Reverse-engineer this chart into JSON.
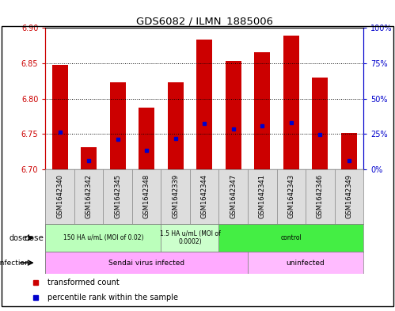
{
  "title": "GDS6082 / ILMN_1885006",
  "samples": [
    "GSM1642340",
    "GSM1642342",
    "GSM1642345",
    "GSM1642348",
    "GSM1642339",
    "GSM1642344",
    "GSM1642347",
    "GSM1642341",
    "GSM1642343",
    "GSM1642346",
    "GSM1642349"
  ],
  "bar_heights": [
    6.848,
    6.732,
    6.823,
    6.788,
    6.823,
    6.884,
    6.853,
    6.866,
    6.889,
    6.83,
    6.752
  ],
  "blue_positions": [
    6.753,
    6.713,
    6.743,
    6.727,
    6.744,
    6.765,
    6.757,
    6.762,
    6.766,
    6.749,
    6.713
  ],
  "bar_color": "#cc0000",
  "blue_color": "#0000cc",
  "bar_bottom": 6.7,
  "ylim_left": [
    6.7,
    6.9
  ],
  "ylim_right": [
    0,
    100
  ],
  "yticks_left": [
    6.7,
    6.75,
    6.8,
    6.85,
    6.9
  ],
  "yticks_right": [
    0,
    25,
    50,
    75,
    100
  ],
  "ytick_labels_right": [
    "0%",
    "25%",
    "50%",
    "75%",
    "100%"
  ],
  "dose_groups": [
    {
      "label": "150 HA u/mL (MOI of 0.02)",
      "span": [
        0,
        4
      ],
      "color": "#bbffbb"
    },
    {
      "label": "1.5 HA u/mL (MOI of\n0.0002)",
      "span": [
        4,
        6
      ],
      "color": "#ccffcc"
    },
    {
      "label": "control",
      "span": [
        6,
        11
      ],
      "color": "#44ee44"
    }
  ],
  "infection_groups": [
    {
      "label": "Sendai virus infected",
      "span": [
        0,
        7
      ],
      "color": "#ffaaff"
    },
    {
      "label": "uninfected",
      "span": [
        7,
        11
      ],
      "color": "#ffbbff"
    }
  ],
  "legend_items": [
    {
      "color": "#cc0000",
      "label": "transformed count"
    },
    {
      "color": "#0000cc",
      "label": "percentile rank within the sample"
    }
  ],
  "background_color": "#ffffff",
  "tick_color_left": "#cc0000",
  "tick_color_right": "#0000cc",
  "xtick_bg": "#dddddd"
}
